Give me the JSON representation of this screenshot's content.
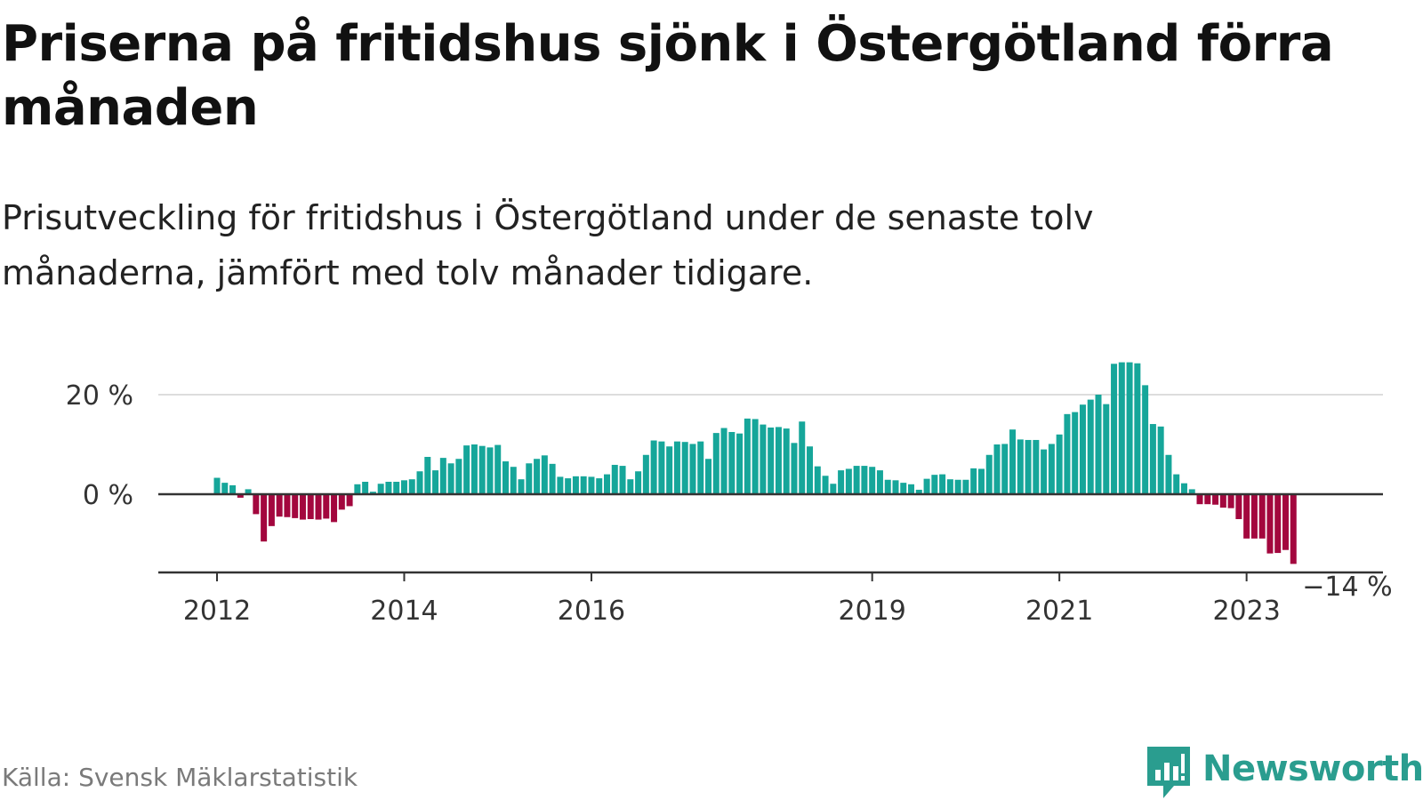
{
  "title": "Priserna på fritidshus sjönk i Östergötland förra månaden",
  "subtitle": "Prisutveckling för fritidshus i Östergötland under de senaste tolv månaderna, jämfört med tolv månader tidigare.",
  "source": "Källa: Svensk Mäklarstatistik",
  "brand": {
    "name": "Newsworthy",
    "icon": "newsworthy-logo-icon",
    "color": "#2a9d8f"
  },
  "chart_data": {
    "type": "bar",
    "x_start": "2012-01",
    "x_unit": "month",
    "colors": {
      "positive": "#16a69a",
      "negative": "#a3073e",
      "zero_line": "#333333",
      "grid": "#dddddd"
    },
    "y_ticks": [
      {
        "value": 0,
        "label": "0 %"
      },
      {
        "value": 20,
        "label": "20 %"
      }
    ],
    "x_ticks": [
      "2012",
      "2014",
      "2016",
      "2019",
      "2021",
      "2023"
    ],
    "ylim": [
      -16,
      28
    ],
    "grid": true,
    "end_label": "−14 %",
    "values": [
      3.3,
      2.3,
      1.8,
      -0.7,
      1.0,
      -4.0,
      -9.5,
      -6.4,
      -4.5,
      -4.6,
      -4.8,
      -5.1,
      -5.0,
      -5.1,
      -4.9,
      -5.6,
      -3.1,
      -2.4,
      2.0,
      2.5,
      0.5,
      2.1,
      2.5,
      2.5,
      2.8,
      3.0,
      4.6,
      7.5,
      4.8,
      7.3,
      6.2,
      7.1,
      9.8,
      10.0,
      9.7,
      9.4,
      9.9,
      6.6,
      5.5,
      3.0,
      6.2,
      7.1,
      7.8,
      6.1,
      3.5,
      3.2,
      3.6,
      3.6,
      3.5,
      3.2,
      4.0,
      5.9,
      5.7,
      3.0,
      4.6,
      7.9,
      10.8,
      10.6,
      9.6,
      10.6,
      10.5,
      10.1,
      10.6,
      7.1,
      12.3,
      13.3,
      12.5,
      12.2,
      15.2,
      15.1,
      14.0,
      13.4,
      13.5,
      13.2,
      10.3,
      14.6,
      9.6,
      5.6,
      3.7,
      2.1,
      4.8,
      5.1,
      5.7,
      5.7,
      5.5,
      4.8,
      2.9,
      2.8,
      2.3,
      2.0,
      0.9,
      3.1,
      3.9,
      4.0,
      3.0,
      2.9,
      2.9,
      5.2,
      5.1,
      7.9,
      10.0,
      10.1,
      13.0,
      11.0,
      10.9,
      10.9,
      9.0,
      10.1,
      12.0,
      16.1,
      16.5,
      18.0,
      19.0,
      20.0,
      18.1,
      26.2,
      26.5,
      26.5,
      26.3,
      21.9,
      14.1,
      13.6,
      7.9,
      4.0,
      2.2,
      1.0,
      -2.0,
      -2.0,
      -2.1,
      -2.7,
      -2.8,
      -5.0,
      -8.9,
      -8.9,
      -8.9,
      -11.9,
      -11.8,
      -11.2,
      -14.0
    ]
  }
}
